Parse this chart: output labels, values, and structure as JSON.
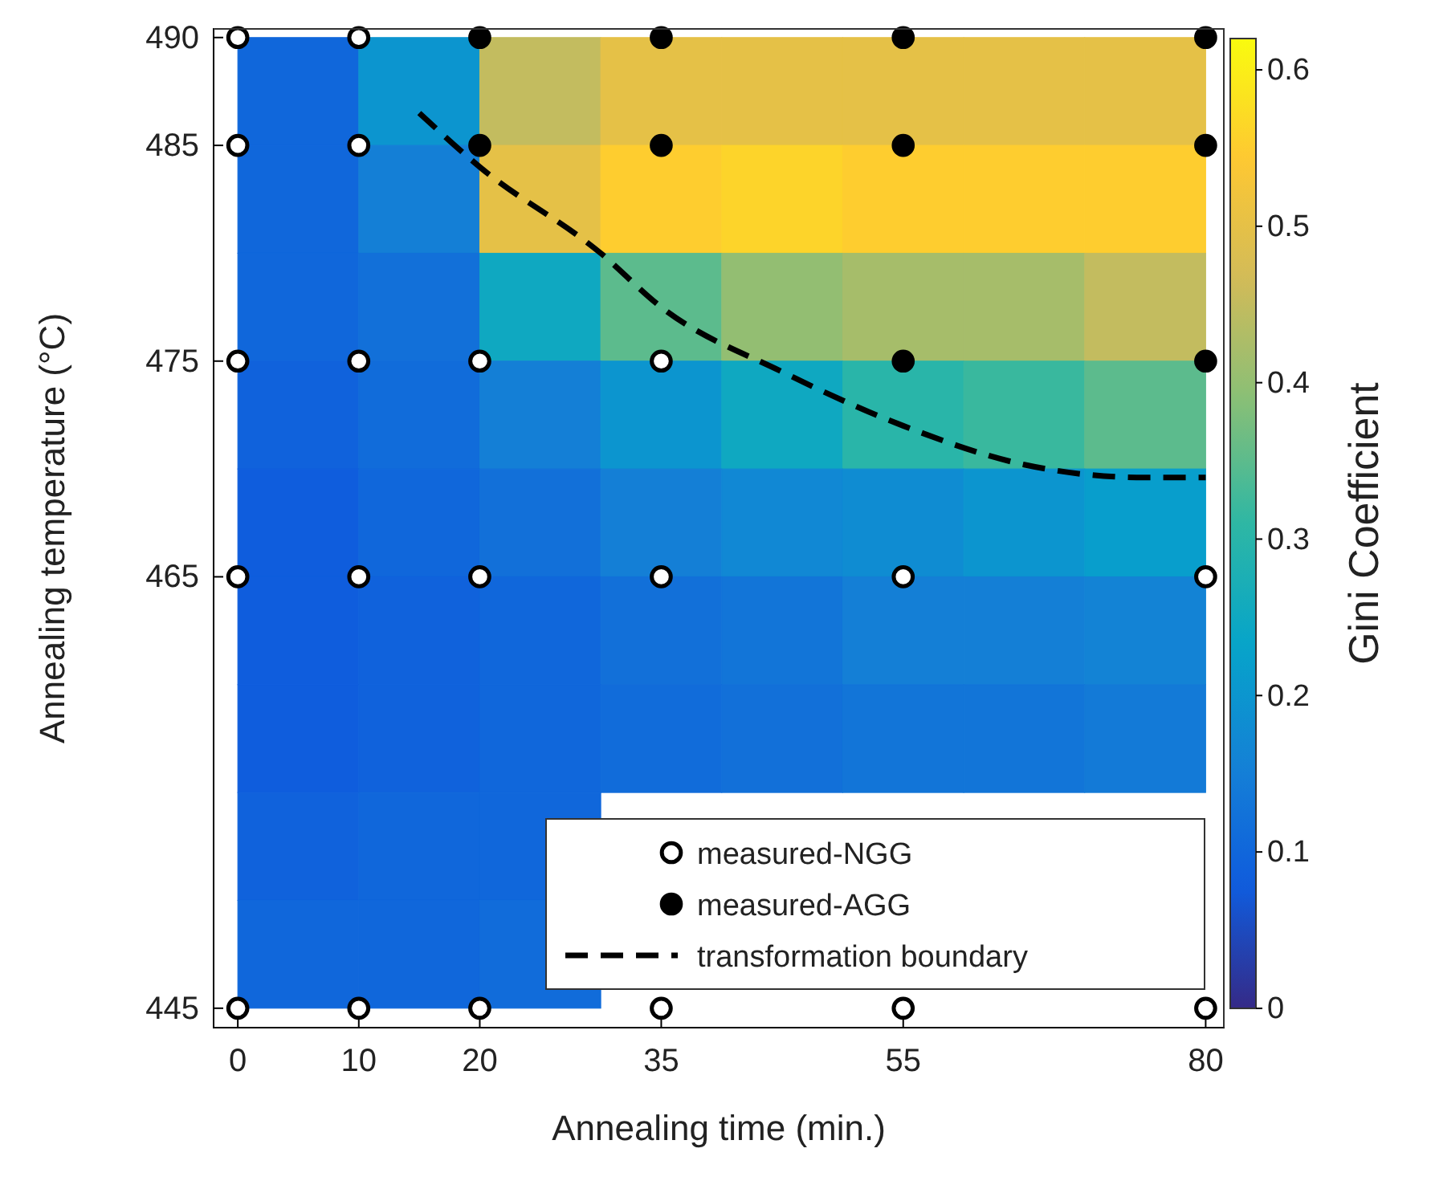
{
  "chart_data": [
    {
      "type": "heatmap",
      "clabel": "Gini Coefficient",
      "categories": [
        null,
        null,
        null,
        null,
        null,
        null,
        null,
        null
      ],
      "y_categories": [
        null,
        null,
        null,
        null,
        null,
        null,
        null,
        null,
        null
      ],
      "cells": [
        [
          0.1,
          0.2,
          0.45,
          0.5,
          0.5,
          0.5,
          0.5,
          0.5
        ],
        [
          0.1,
          0.15,
          0.5,
          0.55,
          0.56,
          0.55,
          0.55,
          0.55
        ],
        [
          0.1,
          0.12,
          0.25,
          0.35,
          0.4,
          0.42,
          0.42,
          0.45
        ],
        [
          0.09,
          0.11,
          0.15,
          0.2,
          0.25,
          0.3,
          0.32,
          0.35
        ],
        [
          0.08,
          0.1,
          0.12,
          0.15,
          0.17,
          0.18,
          0.2,
          0.22
        ],
        [
          0.08,
          0.09,
          0.1,
          0.12,
          0.13,
          0.15,
          0.15,
          0.16
        ],
        [
          0.08,
          0.09,
          0.1,
          0.11,
          0.12,
          0.13,
          0.13,
          0.14
        ],
        [
          0.09,
          0.1,
          0.1,
          null,
          null,
          null,
          null,
          null
        ],
        [
          0.1,
          0.1,
          0.11,
          null,
          null,
          null,
          null,
          null
        ]
      ],
      "clim": [
        0,
        0.62
      ],
      "cticks": [
        0,
        0.1,
        0.2,
        0.3,
        0.4,
        0.5,
        0.6
      ]
    },
    {
      "type": "scatter",
      "xlabel": "Annealing time (min.)",
      "ylabel": "Annealing temperature (°C)",
      "xlim": [
        -2,
        81.5
      ],
      "xticks": [
        0,
        10,
        20,
        35,
        55,
        80
      ],
      "ylim": [
        444.1,
        490.4
      ],
      "yticks": [
        445,
        465,
        475,
        485,
        490
      ],
      "legend": "bottom right",
      "series": [
        {
          "name": "measured-NGG",
          "type": "scatter",
          "marker": "circle",
          "color": "#ffffff",
          "x": [
            0,
            10,
            0,
            10,
            0,
            10,
            20,
            35,
            0,
            10,
            20,
            35,
            55,
            80,
            0,
            10,
            20,
            35,
            55,
            80
          ],
          "values": [
            490,
            490,
            485,
            485,
            475,
            475,
            475,
            475,
            465,
            465,
            465,
            465,
            465,
            465,
            445,
            445,
            445,
            445,
            445,
            445
          ]
        },
        {
          "name": "measured-AGG",
          "type": "scatter",
          "marker": "circle",
          "color": "#000000",
          "x": [
            20,
            35,
            55,
            80,
            20,
            35,
            55,
            80,
            55,
            80
          ],
          "values": [
            490,
            490,
            490,
            490,
            485,
            485,
            485,
            485,
            475,
            475
          ]
        },
        {
          "name": "transformation boundary",
          "type": "line",
          "line_style": "dashed",
          "color": "#000000",
          "x": [
            15,
            20,
            30,
            35,
            45,
            55,
            65,
            75,
            80
          ],
          "values": [
            486.5,
            484,
            480,
            477.5,
            474.5,
            472,
            470.2,
            469.6,
            469.6
          ]
        }
      ]
    }
  ]
}
